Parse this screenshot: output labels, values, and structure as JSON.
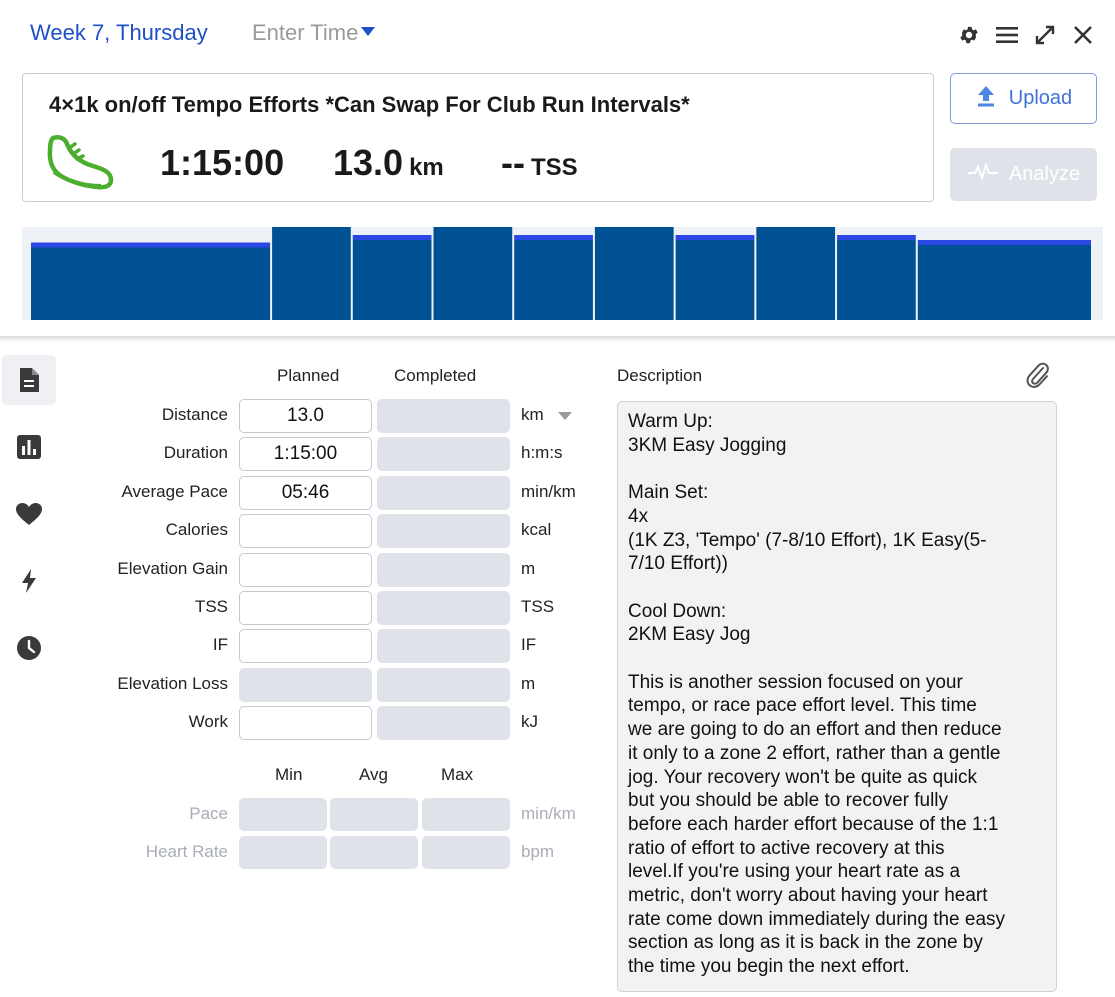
{
  "header": {
    "day_label": "Week 7, Thursday",
    "enter_time": "Enter Time",
    "icons": [
      "gear-icon",
      "menu-icon",
      "expand-icon",
      "close-icon"
    ]
  },
  "workout": {
    "title": "4×1k on/off Tempo Efforts *Can Swap For Club Run Intervals*",
    "sport_icon": "run-shoe-icon",
    "duration": "1:15:00",
    "distance": "13.0",
    "distance_unit": "km",
    "tss": "--",
    "tss_unit": "TSS"
  },
  "actions": {
    "upload_label": "Upload",
    "analyze_label": "Analyze"
  },
  "interval_chart": {
    "type": "bar",
    "segments": [
      {
        "duration_fraction": 0.227,
        "intensity": 0.62
      },
      {
        "duration_fraction": 0.076,
        "intensity": 0.8
      },
      {
        "duration_fraction": 0.076,
        "intensity": 0.68
      },
      {
        "duration_fraction": 0.076,
        "intensity": 0.8
      },
      {
        "duration_fraction": 0.076,
        "intensity": 0.68
      },
      {
        "duration_fraction": 0.076,
        "intensity": 0.8
      },
      {
        "duration_fraction": 0.076,
        "intensity": 0.68
      },
      {
        "duration_fraction": 0.076,
        "intensity": 0.8
      },
      {
        "duration_fraction": 0.076,
        "intensity": 0.68
      },
      {
        "duration_fraction": 0.165,
        "intensity": 0.64
      }
    ],
    "colors": {
      "fill": "#005194",
      "cap": "#2a46e3",
      "separator": "#e9edf5",
      "background": "#eef1f6"
    }
  },
  "side_nav": [
    {
      "name": "summary",
      "icon": "document-icon",
      "active": true
    },
    {
      "name": "charts",
      "icon": "bar-chart-icon",
      "active": false
    },
    {
      "name": "heart-rate",
      "icon": "heart-icon",
      "active": false
    },
    {
      "name": "power",
      "icon": "lightning-icon",
      "active": false
    },
    {
      "name": "history",
      "icon": "clock-icon",
      "active": false
    }
  ],
  "metrics": {
    "planned_header": "Planned",
    "completed_header": "Completed",
    "rows": [
      {
        "label": "Distance",
        "planned": "13.0",
        "completed": "",
        "unit": "km",
        "has_dropdown": true
      },
      {
        "label": "Duration",
        "planned": "1:15:00",
        "completed": "",
        "unit": "h:m:s"
      },
      {
        "label": "Average Pace",
        "planned": "05:46",
        "completed": "",
        "unit": "min/km"
      },
      {
        "label": "Calories",
        "planned": "",
        "completed": "",
        "unit": "kcal"
      },
      {
        "label": "Elevation Gain",
        "planned": "",
        "completed": "",
        "unit": "m"
      },
      {
        "label": "TSS",
        "planned": "",
        "completed": "",
        "unit": "TSS"
      },
      {
        "label": "IF",
        "planned": "",
        "completed": "",
        "unit": "IF"
      },
      {
        "label": "Elevation Loss",
        "planned": "",
        "completed": "",
        "unit": "m",
        "planned_disabled": true
      },
      {
        "label": "Work",
        "planned": "",
        "completed": "",
        "unit": "kJ"
      }
    ]
  },
  "ranges": {
    "min_header": "Min",
    "avg_header": "Avg",
    "max_header": "Max",
    "rows": [
      {
        "label": "Pace",
        "unit": "min/km"
      },
      {
        "label": "Heart Rate",
        "unit": "bpm"
      }
    ]
  },
  "description": {
    "label": "Description",
    "attach_icon": "paperclip-icon",
    "text": "Warm Up:\n3KM Easy Jogging\n\nMain Set:\n4x\n(1K Z3, 'Tempo' (7-8/10 Effort), 1K Easy(5-\n7/10 Effort))\n\nCool Down:\n2KM Easy Jog\n\nThis is another session focused on your\ntempo, or race pace effort level. This time\nwe are going to do an effort and then reduce\nit only to a zone 2 effort, rather than a gentle\njog. Your recovery won't be quite as quick\nbut you should be able to recover fully\nbefore each harder effort because of the 1:1\nratio of effort to active recovery at this\nlevel.If you're using your heart rate as a\nmetric, don't worry about having your heart\nrate come down immediately during the easy\nsection as long as it is back in the zone by\nthe time you begin the next effort."
  }
}
